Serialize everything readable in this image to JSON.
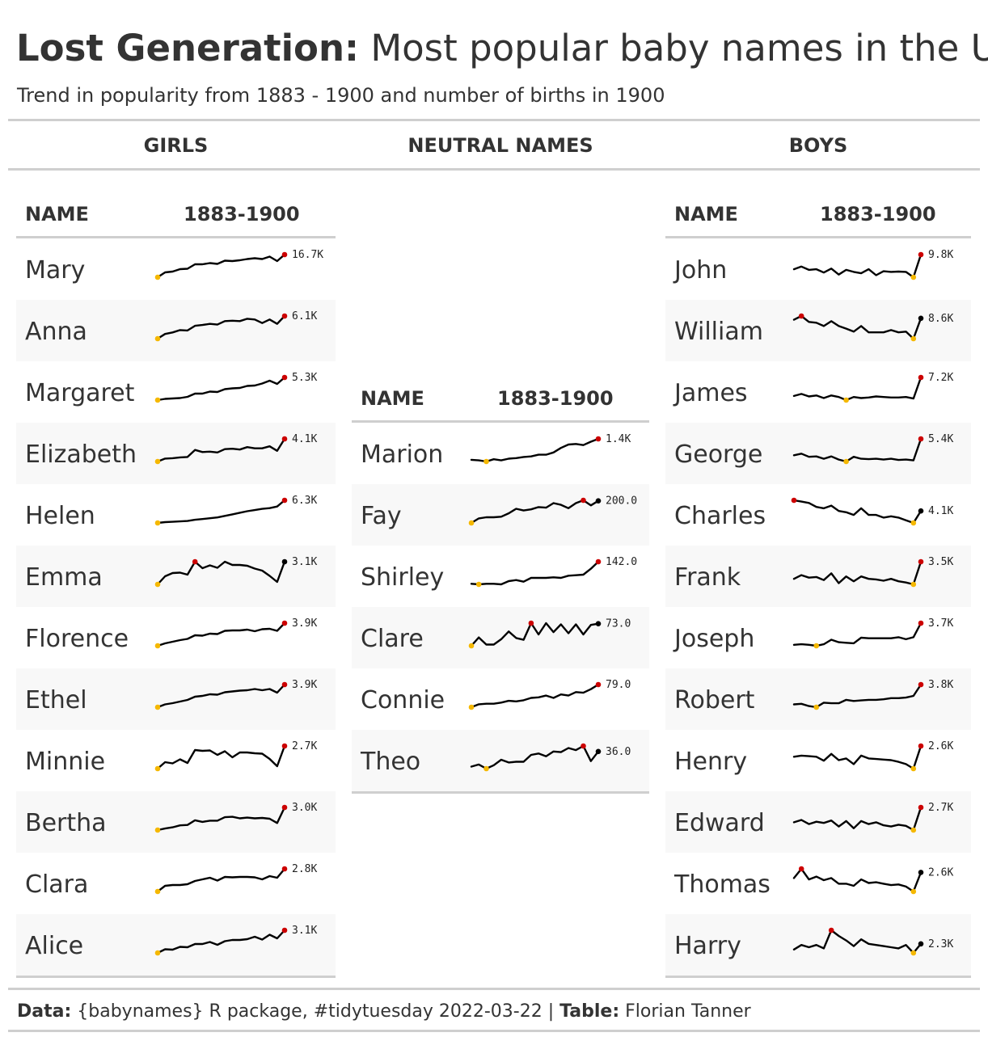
{
  "header": {
    "title_bold": "Lost Generation:",
    "title_rest": "Most popular baby names in the US",
    "subtitle": "Trend in popularity from 1883 - 1900 and number of births in 1900"
  },
  "groups": {
    "girls": "GIRLS",
    "neutral": "NEUTRAL NAMES",
    "boys": "BOYS"
  },
  "columns": {
    "name": "NAME",
    "trend": "1883-1900"
  },
  "colors": {
    "line": "#000000",
    "min": "#f5b800",
    "max": "#cc0000",
    "end": "#000000"
  },
  "chart_data": {
    "type": "table",
    "description_columns": [
      "NAME",
      "1883-1900"
    ],
    "years": [
      1883,
      1884,
      1885,
      1886,
      1887,
      1888,
      1889,
      1890,
      1891,
      1892,
      1893,
      1894,
      1895,
      1896,
      1897,
      1898,
      1899,
      1900
    ],
    "tables": [
      {
        "group": "girls",
        "rows": [
          {
            "name": "Mary",
            "label": "16.7K",
            "values": [
              0,
              12,
              14,
              20,
              21,
              32,
              32,
              35,
              33,
              41,
              40,
              42,
              45,
              47,
              45,
              51,
              40,
              56
            ]
          },
          {
            "name": "Anna",
            "label": "6.1K",
            "values": [
              0,
              12,
              16,
              22,
              21,
              33,
              35,
              38,
              36,
              45,
              46,
              45,
              51,
              49,
              40,
              49,
              38,
              58
            ]
          },
          {
            "name": "Margaret",
            "label": "5.3K",
            "values": [
              0,
              3,
              4,
              5,
              8,
              16,
              16,
              21,
              20,
              27,
              29,
              30,
              35,
              36,
              41,
              48,
              40,
              56
            ]
          },
          {
            "name": "Elizabeth",
            "label": "4.1K",
            "values": [
              0,
              7,
              8,
              10,
              11,
              28,
              23,
              24,
              22,
              30,
              31,
              29,
              35,
              32,
              32,
              37,
              26,
              55
            ]
          },
          {
            "name": "Helen",
            "label": "6.3K",
            "values": [
              0,
              2,
              3,
              4,
              5,
              8,
              10,
              12,
              14,
              18,
              22,
              26,
              30,
              33,
              36,
              38,
              42,
              58
            ]
          },
          {
            "name": "Emma",
            "label": "3.1K",
            "values": [
              0,
              20,
              28,
              29,
              24,
              56,
              40,
              47,
              41,
              56,
              48,
              48,
              46,
              39,
              34,
              21,
              6,
              56
            ]
          },
          {
            "name": "Florence",
            "label": "3.9K",
            "values": [
              0,
              6,
              10,
              14,
              17,
              26,
              25,
              30,
              29,
              37,
              38,
              38,
              40,
              36,
              41,
              42,
              37,
              56
            ]
          },
          {
            "name": "Ethel",
            "label": "3.9K",
            "values": [
              0,
              7,
              10,
              14,
              18,
              26,
              28,
              32,
              31,
              37,
              39,
              41,
              42,
              45,
              42,
              45,
              36,
              56
            ]
          },
          {
            "name": "Minnie",
            "label": "2.7K",
            "values": [
              0,
              16,
              13,
              23,
              14,
              46,
              44,
              45,
              34,
              43,
              28,
              40,
              40,
              38,
              37,
              24,
              6,
              56
            ]
          },
          {
            "name": "Bertha",
            "label": "3.0K",
            "values": [
              0,
              4,
              7,
              12,
              13,
              25,
              21,
              24,
              24,
              33,
              34,
              30,
              32,
              30,
              31,
              29,
              18,
              58
            ]
          },
          {
            "name": "Clara",
            "label": "2.8K",
            "values": [
              0,
              14,
              16,
              16,
              18,
              26,
              30,
              34,
              27,
              36,
              35,
              36,
              36,
              35,
              30,
              38,
              34,
              56
            ]
          },
          {
            "name": "Alice",
            "label": "3.1K",
            "values": [
              0,
              9,
              8,
              15,
              14,
              22,
              22,
              27,
              20,
              29,
              32,
              32,
              34,
              40,
              33,
              45,
              36,
              56
            ]
          }
        ]
      },
      {
        "group": "neutral",
        "rows": [
          {
            "name": "Marion",
            "label": "1.4K",
            "values": [
              3,
              2,
              0,
              4,
              2,
              5,
              6,
              8,
              9,
              12,
              12,
              16,
              24,
              30,
              31,
              29,
              35,
              40
            ]
          },
          {
            "name": "Fay",
            "label": "200.0",
            "values": [
              0,
              8,
              10,
              10,
              11,
              17,
              25,
              22,
              24,
              28,
              27,
              35,
              32,
              26,
              35,
              40,
              31,
              39
            ]
          },
          {
            "name": "Shirley",
            "label": "142.0",
            "values": [
              0,
              -1,
              0,
              0,
              -1,
              5,
              7,
              4,
              11,
              11,
              11,
              12,
              11,
              15,
              16,
              17,
              28,
              41
            ]
          },
          {
            "name": "Clare",
            "label": "73.0",
            "values": [
              0,
              14,
              2,
              2,
              11,
              24,
              13,
              10,
              38,
              19,
              38,
              23,
              36,
              21,
              36,
              19,
              35,
              37
            ]
          },
          {
            "name": "Connie",
            "label": "79.0",
            "values": [
              0,
              5,
              6,
              6,
              8,
              11,
              10,
              12,
              16,
              17,
              20,
              16,
              22,
              20,
              26,
              25,
              31,
              39
            ]
          },
          {
            "name": "Theo",
            "label": "36.0",
            "values": [
              3,
              6,
              0,
              5,
              13,
              9,
              10,
              10,
              20,
              22,
              18,
              25,
              24,
              30,
              27,
              33,
              11,
              25
            ]
          }
        ]
      },
      {
        "group": "boys",
        "rows": [
          {
            "name": "John",
            "label": "9.8K",
            "values": [
              36,
              44,
              34,
              36,
              26,
              38,
              20,
              34,
              28,
              24,
              36,
              18,
              30,
              28,
              29,
              28,
              12,
              80
            ]
          },
          {
            "name": "William",
            "label": "8.6K",
            "values": [
              52,
              62,
              46,
              44,
              35,
              48,
              35,
              28,
              20,
              35,
              18,
              18,
              18,
              24,
              18,
              20,
              1,
              56
            ]
          },
          {
            "name": "James",
            "label": "7.2K",
            "values": [
              34,
              42,
              32,
              36,
              26,
              36,
              30,
              18,
              30,
              26,
              28,
              32,
              30,
              28,
              28,
              30,
              24,
              106
            ]
          },
          {
            "name": "George",
            "label": "5.4K",
            "values": [
              52,
              60,
              44,
              46,
              34,
              46,
              30,
              20,
              44,
              34,
              32,
              34,
              30,
              34,
              28,
              30,
              26,
              136
            ]
          },
          {
            "name": "Charles",
            "label": "4.1K",
            "values": [
              42,
              40,
              38,
              32,
              30,
              34,
              26,
              24,
              20,
              30,
              20,
              20,
              16,
              18,
              16,
              12,
              8,
              26
            ]
          },
          {
            "name": "Frank",
            "label": "3.5K",
            "values": [
              24,
              36,
              28,
              30,
              20,
              42,
              10,
              32,
              16,
              32,
              24,
              22,
              18,
              24,
              16,
              12,
              6,
              80
            ]
          },
          {
            "name": "Joseph",
            "label": "3.7K",
            "values": [
              10,
              12,
              10,
              6,
              12,
              30,
              20,
              18,
              16,
              38,
              36,
              36,
              36,
              36,
              40,
              32,
              40,
              96
            ]
          },
          {
            "name": "Robert",
            "label": "3.8K",
            "values": [
              10,
              12,
              4,
              0,
              16,
              14,
              14,
              26,
              22,
              24,
              26,
              26,
              28,
              32,
              32,
              34,
              40,
              80
            ]
          },
          {
            "name": "Henry",
            "label": "2.6K",
            "values": [
              46,
              50,
              48,
              46,
              32,
              56,
              34,
              40,
              20,
              50,
              40,
              38,
              36,
              34,
              28,
              20,
              4,
              84
            ]
          },
          {
            "name": "Edward",
            "label": "2.7K",
            "values": [
              32,
              40,
              26,
              34,
              30,
              38,
              18,
              36,
              12,
              36,
              26,
              32,
              22,
              18,
              24,
              20,
              6,
              82
            ]
          },
          {
            "name": "Thomas",
            "label": "2.6K",
            "values": [
              50,
              76,
              46,
              54,
              44,
              50,
              34,
              34,
              28,
              46,
              36,
              38,
              34,
              30,
              32,
              26,
              12,
              66
            ]
          },
          {
            "name": "Harry",
            "label": "2.3K",
            "values": [
              14,
              22,
              18,
              22,
              16,
              48,
              38,
              30,
              20,
              32,
              24,
              22,
              20,
              18,
              16,
              22,
              8,
              24
            ]
          }
        ]
      }
    ]
  },
  "caption": {
    "data_bold": "Data:",
    "data_text": " {babynames} R package, #tidytuesday 2022-03-22 | ",
    "table_bold": "Table:",
    "table_text": " Florian Tanner"
  }
}
